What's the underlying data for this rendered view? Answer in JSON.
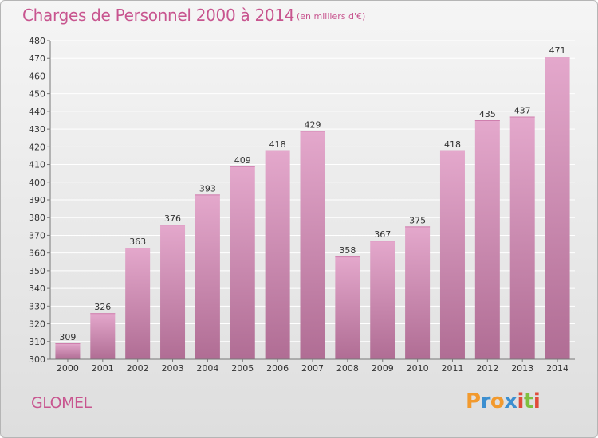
{
  "header": {
    "title": "Charges de Personnel 2000 à 2014",
    "subtitle": "(en milliers d'€)"
  },
  "commune": "GLOMEL",
  "logo": {
    "letters": [
      "P",
      "r",
      "o",
      "x",
      "i",
      "t",
      "i"
    ],
    "colors": [
      "#f29a2e",
      "#3c8fd0",
      "#f29a2e",
      "#3c8fd0",
      "#e04b3a",
      "#7fbf3f",
      "#e04b3a"
    ]
  },
  "colors": {
    "bar_top": "#e4a8cc",
    "bar_bottom": "#b06d94",
    "grid": "#ffffff",
    "axis": "#777777"
  },
  "chart_data": {
    "type": "bar",
    "categories": [
      "2000",
      "2001",
      "2002",
      "2003",
      "2004",
      "2005",
      "2006",
      "2007",
      "2008",
      "2009",
      "2010",
      "2011",
      "2012",
      "2013",
      "2014"
    ],
    "values": [
      309,
      326,
      363,
      376,
      393,
      409,
      418,
      429,
      358,
      367,
      375,
      418,
      435,
      437,
      471
    ],
    "title": "Charges de Personnel 2000 à 2014",
    "ylim": [
      300,
      480
    ],
    "yticks": [
      300,
      310,
      320,
      330,
      340,
      350,
      360,
      370,
      380,
      390,
      400,
      410,
      420,
      430,
      440,
      450,
      460,
      470,
      480
    ],
    "grid": true
  }
}
